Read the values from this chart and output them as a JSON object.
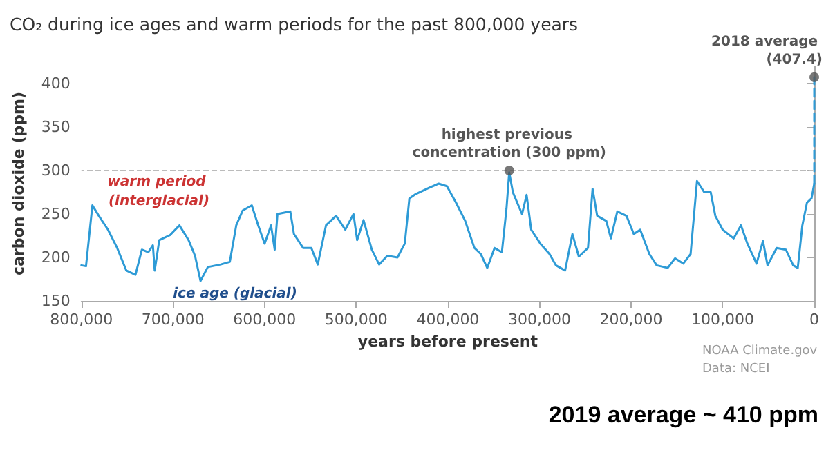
{
  "chart_data": {
    "type": "line",
    "title": "CO₂ during ice ages and warm periods for the past 800,000 years",
    "xlabel": "years before present",
    "ylabel": "carbon dioxide (ppm)",
    "xlim": [
      800000,
      0
    ],
    "xticks": [
      {
        "value": 800000,
        "label": "800,000"
      },
      {
        "value": 700000,
        "label": "700,000"
      },
      {
        "value": 600000,
        "label": "600,000"
      },
      {
        "value": 500000,
        "label": "500,000"
      },
      {
        "value": 400000,
        "label": "400,000"
      },
      {
        "value": 300000,
        "label": "300,000"
      },
      {
        "value": 200000,
        "label": "200,000"
      },
      {
        "value": 100000,
        "label": "100,000"
      },
      0
    ],
    "ylim": [
      150,
      420
    ],
    "yticks": [
      150,
      200,
      250,
      300,
      350,
      400
    ],
    "series": [
      {
        "color": "#2e9bd6",
        "line_style": "solid",
        "marker": "none",
        "x": [
          800000,
          795000,
          788000,
          781000,
          771000,
          761000,
          751000,
          741000,
          734000,
          727000,
          722000,
          720000,
          715000,
          703000,
          693000,
          683000,
          676000,
          670000,
          662000,
          648000,
          638000,
          631000,
          624000,
          614000,
          607000,
          600000,
          593000,
          589000,
          586000,
          572000,
          568000,
          558000,
          549000,
          542000,
          533000,
          522000,
          512000,
          503000,
          499000,
          492000,
          483000,
          475000,
          466000,
          455000,
          447000,
          442000,
          435000,
          421000,
          410000,
          401000,
          391000,
          381000,
          371000,
          364000,
          357000,
          349000,
          341000,
          336000,
          333000,
          329000,
          319000,
          314000,
          309000,
          299000,
          289000,
          282000,
          272000,
          264000,
          257000,
          247000,
          242000,
          237000,
          227000,
          222000,
          215000,
          205000,
          197000,
          190000,
          180000,
          172000,
          160000,
          152000,
          143000,
          135000,
          128000,
          120000,
          113000,
          108000,
          100000,
          88000,
          80000,
          73000,
          63000,
          56000,
          51000,
          41000,
          31000,
          23000,
          18000,
          13000,
          8000,
          3000,
          0
        ],
        "values": [
          191,
          190,
          260,
          248,
          232,
          211,
          185,
          180,
          209,
          206,
          214,
          185,
          220,
          226,
          237,
          220,
          202,
          173,
          189,
          192,
          195,
          237,
          254,
          260,
          237,
          216,
          237,
          209,
          250,
          253,
          227,
          211,
          211,
          192,
          237,
          248,
          232,
          250,
          220,
          243,
          209,
          192,
          202,
          200,
          216,
          268,
          273,
          280,
          285,
          282,
          263,
          242,
          211,
          204,
          188,
          211,
          206,
          256,
          298,
          275,
          250,
          272,
          232,
          216,
          204,
          191,
          185,
          227,
          201,
          211,
          279,
          248,
          242,
          222,
          253,
          248,
          227,
          232,
          204,
          191,
          188,
          199,
          193,
          204,
          288,
          275,
          275,
          248,
          232,
          222,
          237,
          216,
          193,
          219,
          191,
          211,
          209,
          191,
          188,
          237,
          263,
          268,
          285
        ]
      },
      {
        "color": "#2e9bd6",
        "line_style": "dashed",
        "marker": "none",
        "x": [
          0,
          0
        ],
        "values": [
          285,
          407.4
        ]
      },
      {
        "type": "scatter",
        "color": "#555555",
        "marker": "circle",
        "x": [
          333000,
          0
        ],
        "values": [
          300,
          407.4
        ]
      }
    ],
    "ref_lines": [
      {
        "axis": "y",
        "value": 300,
        "color": "#bbbbbb",
        "line_style": "dashed"
      }
    ],
    "annotations": [
      {
        "text": "highest previous concentration (300 ppm)",
        "x": 333000,
        "y": 300
      },
      {
        "text": "2018 average (407.4)",
        "x": 0,
        "y": 407.4
      },
      "warm period (interglacial)",
      "ice age (glacial)",
      "NOAA Climate.gov",
      "Data: NCEI",
      "2019 average ~ 410 ppm"
    ]
  }
}
